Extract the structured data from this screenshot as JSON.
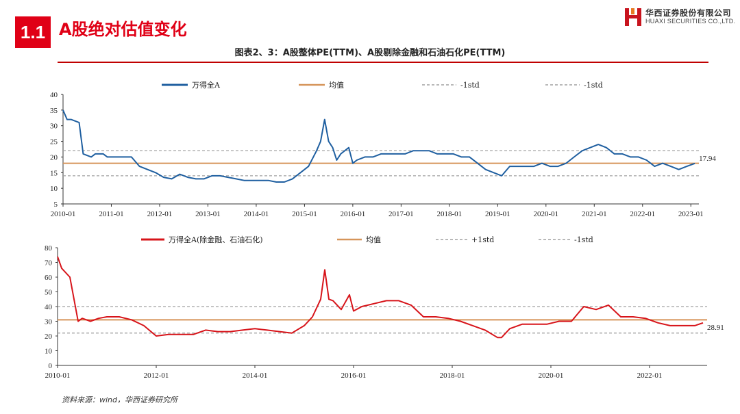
{
  "header": {
    "section_number": "1.1",
    "section_title": "A股绝对估值变化",
    "company_name_cn": "华西证券股份有限公司",
    "company_name_en": "HUAXI SECURITIES CO.,LTD.",
    "logo_icon": "huaxi-logo-icon",
    "accent_color": "#e00016"
  },
  "figure": {
    "caption": "图表2、3：A股整体PE(TTM)、A股剔除金融和石油石化PE(TTM)"
  },
  "footer": {
    "source": "资料来源：wind，华西证券研究所"
  },
  "chart_data": [
    {
      "type": "line",
      "title": "",
      "xlabel": "",
      "ylabel": "",
      "ylim": [
        5,
        40
      ],
      "yticks": [
        5,
        10,
        15,
        20,
        25,
        30,
        35,
        40
      ],
      "xlim": [
        "2010-01",
        "2023-03"
      ],
      "xticks": [
        "2010-01",
        "2011-01",
        "2012-01",
        "2013-01",
        "2014-01",
        "2015-01",
        "2016-01",
        "2017-01",
        "2018-01",
        "2019-01",
        "2020-01",
        "2021-01",
        "2022-01",
        "2023-01"
      ],
      "grid": false,
      "legend_position": "top",
      "series": [
        {
          "name": "万得全A",
          "color": "#1f5fa0",
          "x": [
            "2010-01",
            "2010-02",
            "2010-03",
            "2010-05",
            "2010-06",
            "2010-08",
            "2010-09",
            "2010-11",
            "2010-12",
            "2011-03",
            "2011-04",
            "2011-06",
            "2011-08",
            "2011-10",
            "2011-12",
            "2012-02",
            "2012-04",
            "2012-06",
            "2012-08",
            "2012-10",
            "2012-12",
            "2013-02",
            "2013-04",
            "2013-06",
            "2013-08",
            "2013-10",
            "2013-12",
            "2014-02",
            "2014-04",
            "2014-06",
            "2014-08",
            "2014-10",
            "2014-12",
            "2015-02",
            "2015-04",
            "2015-05",
            "2015-06",
            "2015-07",
            "2015-08",
            "2015-09",
            "2015-10",
            "2015-11",
            "2015-12",
            "2016-01",
            "2016-02",
            "2016-04",
            "2016-06",
            "2016-08",
            "2016-10",
            "2016-12",
            "2017-02",
            "2017-04",
            "2017-06",
            "2017-08",
            "2017-10",
            "2017-12",
            "2018-02",
            "2018-04",
            "2018-06",
            "2018-08",
            "2018-10",
            "2018-12",
            "2019-02",
            "2019-04",
            "2019-06",
            "2019-08",
            "2019-10",
            "2019-12",
            "2020-02",
            "2020-04",
            "2020-06",
            "2020-08",
            "2020-10",
            "2020-12",
            "2021-02",
            "2021-04",
            "2021-06",
            "2021-08",
            "2021-10",
            "2021-12",
            "2022-02",
            "2022-04",
            "2022-06",
            "2022-08",
            "2022-10",
            "2022-12",
            "2023-02"
          ],
          "y": [
            35,
            32,
            32,
            31,
            21,
            20,
            21,
            21,
            20,
            20,
            20,
            20,
            17,
            16,
            15,
            13.5,
            13,
            14.5,
            13.5,
            13,
            13,
            14,
            14,
            13.5,
            13,
            12.5,
            12.5,
            12.5,
            12.5,
            12,
            12,
            13,
            15,
            17,
            22,
            25,
            32,
            25,
            23,
            19,
            21,
            22,
            23,
            18,
            19,
            20,
            20,
            21,
            21,
            21,
            21,
            22,
            22,
            22,
            21,
            21,
            21,
            20,
            20,
            18,
            16,
            15,
            14,
            17,
            17,
            17,
            17,
            18,
            17,
            17,
            18,
            20,
            22,
            23,
            24,
            23,
            21,
            21,
            20,
            20,
            19,
            17,
            18,
            17,
            16,
            17,
            17.94
          ]
        },
        {
          "name": "均值",
          "color": "#d6955a",
          "value": 18.0
        },
        {
          "name": "-1std",
          "color": "#a0a0a0",
          "value": 22.0
        },
        {
          "name": "-1std",
          "color": "#a0a0a0",
          "value": 14.0
        }
      ],
      "annotations": [
        {
          "text": "17.94",
          "y": 17.94
        }
      ]
    },
    {
      "type": "line",
      "title": "",
      "xlabel": "",
      "ylabel": "",
      "ylim": [
        0,
        80
      ],
      "yticks": [
        0,
        10,
        20,
        30,
        40,
        50,
        60,
        70,
        80
      ],
      "xlim": [
        "2010-01",
        "2023-03"
      ],
      "xticks": [
        "2010-01",
        "2012-01",
        "2014-01",
        "2016-01",
        "2018-01",
        "2020-01",
        "2022-01"
      ],
      "grid": false,
      "legend_position": "top",
      "series": [
        {
          "name": "万得全A(除金融、石油石化)",
          "color": "#d7141a",
          "x": [
            "2010-01",
            "2010-02",
            "2010-04",
            "2010-06",
            "2010-07",
            "2010-09",
            "2010-11",
            "2011-01",
            "2011-04",
            "2011-07",
            "2011-10",
            "2012-01",
            "2012-04",
            "2012-07",
            "2012-10",
            "2013-01",
            "2013-04",
            "2013-07",
            "2013-10",
            "2014-01",
            "2014-04",
            "2014-07",
            "2014-10",
            "2015-01",
            "2015-03",
            "2015-05",
            "2015-06",
            "2015-07",
            "2015-08",
            "2015-10",
            "2015-12",
            "2016-01",
            "2016-03",
            "2016-06",
            "2016-09",
            "2016-12",
            "2017-03",
            "2017-06",
            "2017-09",
            "2017-12",
            "2018-03",
            "2018-06",
            "2018-09",
            "2018-12",
            "2019-01",
            "2019-03",
            "2019-06",
            "2019-09",
            "2019-12",
            "2020-03",
            "2020-06",
            "2020-09",
            "2020-12",
            "2021-03",
            "2021-06",
            "2021-09",
            "2021-12",
            "2022-03",
            "2022-06",
            "2022-09",
            "2022-12",
            "2023-02"
          ],
          "y": [
            74,
            66,
            60,
            30,
            32,
            30,
            32,
            33,
            33,
            31,
            27,
            20,
            21,
            21,
            21,
            24,
            23,
            23,
            24,
            25,
            24,
            23,
            22,
            27,
            33,
            45,
            65,
            45,
            44,
            38,
            48,
            37,
            40,
            42,
            44,
            44,
            41,
            33,
            33,
            32,
            30,
            27,
            24,
            19,
            19,
            25,
            28,
            28,
            28,
            30,
            30,
            40,
            38,
            41,
            33,
            33,
            32,
            29,
            27,
            27,
            27,
            28.91
          ]
        },
        {
          "name": "均值",
          "color": "#d6955a",
          "value": 31.0
        },
        {
          "name": "+1std",
          "color": "#a0a0a0",
          "value": 40.0
        },
        {
          "name": "-1std",
          "color": "#a0a0a0",
          "value": 22.0
        }
      ],
      "annotations": [
        {
          "text": "28.91",
          "y": 28.91
        }
      ]
    }
  ]
}
